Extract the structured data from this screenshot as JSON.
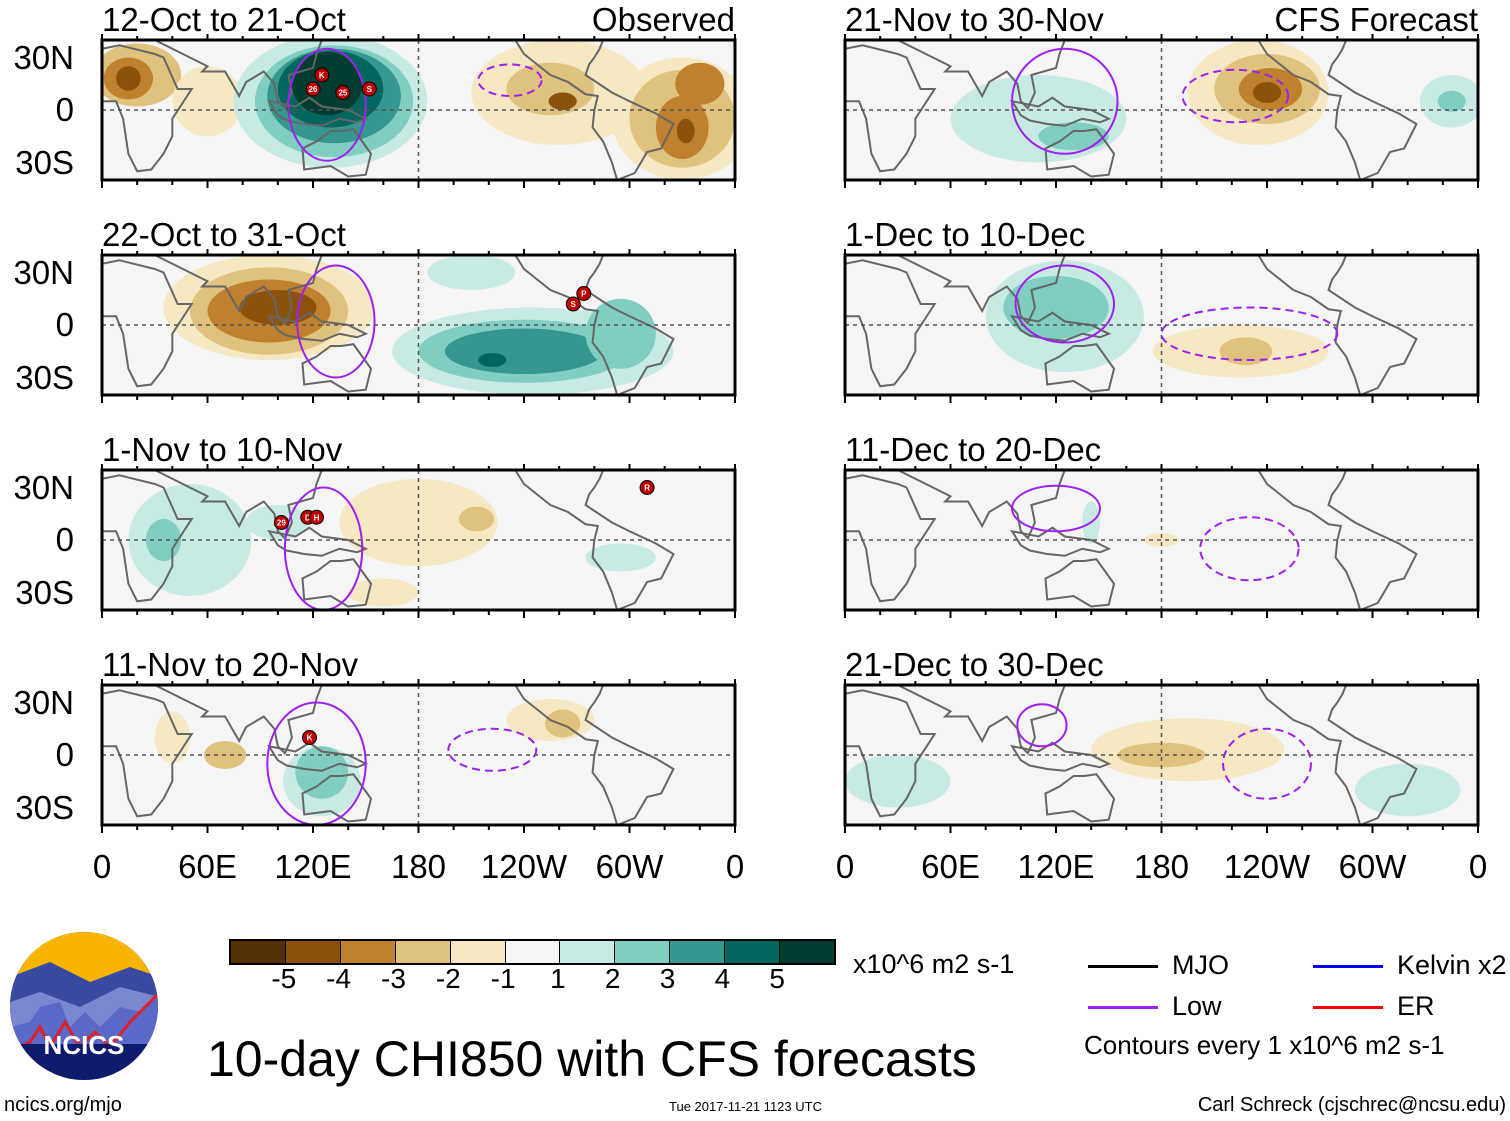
{
  "chart_data": {
    "type": "heatmap",
    "title": "10-day CHI850 with CFS forecasts",
    "units": "x10^6 m2 s-1",
    "contour_note": "Contours every 1 x10^6 m2 s-1",
    "x_ticks": [
      "0",
      "60E",
      "120E",
      "180",
      "120W",
      "60W",
      "0"
    ],
    "y_ticks": [
      "30N",
      "0",
      "30S"
    ],
    "xlim_lon": [
      0,
      360
    ],
    "ylim_lat": [
      -40,
      40
    ],
    "colorbar": {
      "labels": [
        "-5",
        "-4",
        "-3",
        "-2",
        "-1",
        "1",
        "2",
        "3",
        "4",
        "5"
      ],
      "colors": [
        "#543005",
        "#8c510a",
        "#bf812d",
        "#dfc27d",
        "#f6e8c3",
        "#f5f5f5",
        "#c7eae5",
        "#80cdc1",
        "#35978f",
        "#01665e",
        "#003c30"
      ]
    },
    "legend": [
      {
        "label": "MJO",
        "color": "#000000"
      },
      {
        "label": "Kelvin x2",
        "color": "#0000ff"
      },
      {
        "label": "Low",
        "color": "#a020f0"
      },
      {
        "label": "ER",
        "color": "#ff0000"
      }
    ],
    "panels": [
      {
        "title": "12-Oct to 21-Oct",
        "tag": "Observed",
        "anoms": [
          [
            20,
            20,
            25,
            18,
            -2
          ],
          [
            15,
            18,
            14,
            12,
            -3
          ],
          [
            15,
            18,
            7,
            7,
            -4
          ],
          [
            60,
            5,
            20,
            20,
            -1
          ],
          [
            130,
            5,
            55,
            38,
            1
          ],
          [
            132,
            5,
            45,
            32,
            2
          ],
          [
            132,
            8,
            38,
            27,
            3
          ],
          [
            130,
            12,
            30,
            22,
            4
          ],
          [
            128,
            15,
            20,
            18,
            5
          ],
          [
            260,
            10,
            50,
            30,
            -1
          ],
          [
            330,
            -5,
            40,
            35,
            -1
          ],
          [
            255,
            12,
            25,
            15,
            -2
          ],
          [
            330,
            -5,
            30,
            28,
            -2
          ],
          [
            330,
            -10,
            15,
            18,
            -3
          ],
          [
            340,
            15,
            14,
            12,
            -3
          ],
          [
            262,
            5,
            8,
            5,
            -4
          ],
          [
            332,
            -12,
            5,
            7,
            -4
          ]
        ],
        "lows": [
          [
            128,
            3,
            22,
            32,
            1
          ],
          [
            232,
            17,
            18,
            9,
            -1
          ]
        ],
        "storms": [
          [
            "26",
            120,
            12
          ],
          [
            "K",
            125,
            20
          ],
          [
            "25",
            137,
            10
          ],
          [
            "S",
            152,
            12
          ]
        ]
      },
      {
        "title": "22-Oct to 31-Oct",
        "tag": "",
        "anoms": [
          [
            95,
            10,
            60,
            30,
            -1
          ],
          [
            95,
            8,
            45,
            25,
            -2
          ],
          [
            95,
            8,
            35,
            18,
            -3
          ],
          [
            100,
            10,
            22,
            10,
            -4
          ],
          [
            245,
            -15,
            80,
            25,
            1
          ],
          [
            240,
            -15,
            60,
            18,
            2
          ],
          [
            240,
            -15,
            45,
            13,
            3
          ],
          [
            222,
            -20,
            8,
            4,
            4
          ],
          [
            210,
            30,
            25,
            10,
            1
          ],
          [
            295,
            -5,
            20,
            20,
            2
          ]
        ],
        "lows": [
          [
            133,
            2,
            22,
            32,
            1
          ]
        ],
        "storms": [
          [
            "S",
            268,
            12
          ],
          [
            "P",
            274,
            18
          ]
        ]
      },
      {
        "title": "1-Nov to 10-Nov",
        "tag": "",
        "anoms": [
          [
            50,
            0,
            35,
            32,
            1
          ],
          [
            35,
            0,
            10,
            12,
            2
          ],
          [
            100,
            10,
            18,
            10,
            1
          ],
          [
            180,
            10,
            45,
            25,
            -1
          ],
          [
            213,
            12,
            10,
            7,
            -2
          ],
          [
            295,
            -10,
            20,
            8,
            1
          ],
          [
            160,
            -30,
            20,
            8,
            -1
          ]
        ],
        "lows": [
          [
            126,
            -5,
            22,
            35,
            1
          ]
        ],
        "storms": [
          [
            "29",
            102,
            10
          ],
          [
            "D",
            117,
            13
          ],
          [
            "H",
            122,
            13
          ],
          [
            "R",
            310,
            30
          ]
        ]
      },
      {
        "title": "11-Nov to 20-Nov",
        "tag": "",
        "anoms": [
          [
            125,
            -15,
            22,
            20,
            1
          ],
          [
            125,
            -10,
            15,
            15,
            2
          ],
          [
            70,
            0,
            12,
            8,
            -2
          ],
          [
            255,
            20,
            25,
            12,
            -1
          ],
          [
            262,
            18,
            10,
            8,
            -2
          ],
          [
            40,
            10,
            10,
            15,
            -1
          ]
        ],
        "lows": [
          [
            122,
            -5,
            28,
            35,
            1
          ],
          [
            222,
            3,
            25,
            12,
            -1
          ]
        ],
        "storms": [
          [
            "K",
            118,
            10
          ]
        ]
      },
      {
        "title": "21-Nov to 30-Nov",
        "tag": "CFS Forecast",
        "anoms": [
          [
            110,
            -5,
            50,
            25,
            1
          ],
          [
            130,
            -15,
            20,
            8,
            2
          ],
          [
            235,
            10,
            40,
            30,
            -1
          ],
          [
            240,
            12,
            30,
            20,
            -2
          ],
          [
            242,
            12,
            18,
            12,
            -3
          ],
          [
            240,
            10,
            8,
            6,
            -4
          ],
          [
            345,
            5,
            18,
            15,
            1
          ],
          [
            345,
            5,
            8,
            6,
            2
          ]
        ],
        "lows": [
          [
            125,
            5,
            30,
            30,
            1
          ],
          [
            222,
            8,
            30,
            15,
            -1
          ]
        ],
        "storms": []
      },
      {
        "title": "1-Dec to 10-Dec",
        "tag": "",
        "anoms": [
          [
            125,
            5,
            45,
            32,
            1
          ],
          [
            120,
            10,
            30,
            18,
            2
          ],
          [
            225,
            -15,
            50,
            15,
            -1
          ],
          [
            228,
            -15,
            15,
            8,
            -2
          ]
        ],
        "lows": [
          [
            125,
            12,
            28,
            22,
            1
          ],
          [
            230,
            -5,
            50,
            15,
            -1
          ]
        ],
        "storms": []
      },
      {
        "title": "11-Dec to 20-Dec",
        "tag": "",
        "anoms": [
          [
            140,
            10,
            5,
            12,
            1
          ],
          [
            180,
            0,
            10,
            4,
            -1
          ]
        ],
        "lows": [
          [
            120,
            18,
            25,
            13,
            1
          ],
          [
            230,
            -5,
            28,
            18,
            -1
          ]
        ],
        "storms": []
      },
      {
        "title": "21-Dec to 30-Dec",
        "tag": "",
        "anoms": [
          [
            195,
            3,
            55,
            18,
            -1
          ],
          [
            180,
            0,
            25,
            7,
            -2
          ],
          [
            30,
            -15,
            30,
            15,
            1
          ],
          [
            320,
            -20,
            30,
            15,
            1
          ]
        ],
        "lows": [
          [
            112,
            17,
            14,
            12,
            1
          ],
          [
            240,
            -5,
            25,
            20,
            -1
          ]
        ],
        "storms": []
      }
    ]
  },
  "footer": {
    "title": "10-day CHI850 with CFS forecasts",
    "url": "ncics.org/mjo",
    "timestamp": "Tue 2017-11-21 1123 UTC",
    "author": "Carl Schreck (cjschrec@ncsu.edu)",
    "logo_text": "NCICS"
  }
}
